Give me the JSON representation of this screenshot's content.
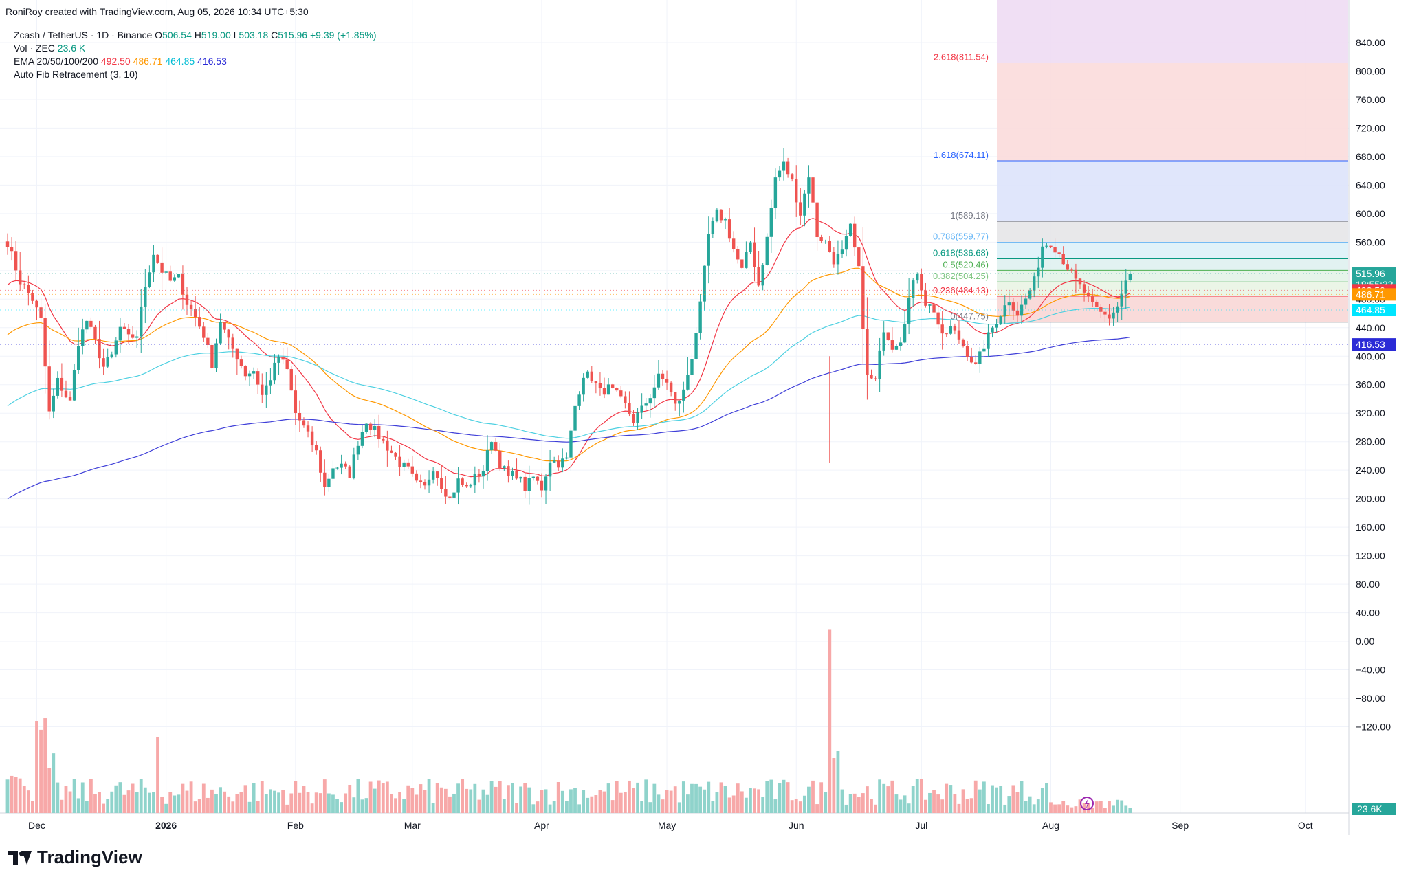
{
  "byline": "RoniRoy created with TradingView.com, Aug 05, 2026 10:34 UTC+5:30",
  "brand": "TradingView",
  "colors": {
    "up": "#26a69a",
    "down": "#ef5350",
    "ema20": "#f23645",
    "ema50": "#ff9800",
    "ema100": "#4dd0e1",
    "ema200": "#3f3fd8",
    "vol_up": "#8fd3cb",
    "vol_down": "#f7a8a8"
  },
  "legend": {
    "symbol": "Zcash / TetherUS · 1D · Binance",
    "o_label": "O",
    "o": "506.54",
    "h_label": "H",
    "h": "519.00",
    "l_label": "L",
    "l": "503.18",
    "c_label": "C",
    "c": "515.96",
    "change": "+9.39 (+1.85%)",
    "vol_label": "Vol · ZEC",
    "vol_value": "23.6 K",
    "ema_label": "EMA 20/50/100/200",
    "ema20": "492.50",
    "ema50": "486.71",
    "ema100": "464.85",
    "ema200": "416.53",
    "fib_label": "Auto Fib Retracement (3, 10)"
  },
  "chart_data": {
    "type": "candlestick",
    "price_axis": {
      "ylim": [
        -150,
        880
      ],
      "ticks": [
        840,
        800,
        760,
        720,
        680,
        640,
        600,
        560,
        520,
        480,
        440,
        400,
        360,
        320,
        280,
        240,
        200,
        160,
        120,
        80,
        40,
        0,
        -40,
        -80,
        -120
      ],
      "tick_labels": [
        "840.00",
        "800.00",
        "760.00",
        "720.00",
        "680.00",
        "640.00",
        "600.00",
        "560.00",
        "520.00",
        "480.00",
        "440.00",
        "400.00",
        "360.00",
        "320.00",
        "280.00",
        "240.00",
        "200.00",
        "160.00",
        "120.00",
        "80.00",
        "40.00",
        "0.00",
        "−40.00",
        "−80.00",
        "−120.00"
      ]
    },
    "time_axis": {
      "labels": [
        "Dec",
        "2026",
        "Feb",
        "Mar",
        "Apr",
        "May",
        "Jun",
        "Jul",
        "Aug",
        "Sep",
        "Oct"
      ],
      "label_day_index": [
        7,
        38,
        69,
        97,
        128,
        158,
        189,
        219,
        250,
        281,
        311
      ]
    },
    "days_total": 326,
    "price_anchors": [
      [
        0,
        560
      ],
      [
        3,
        505
      ],
      [
        6,
        480
      ],
      [
        8,
        450
      ],
      [
        10,
        320
      ],
      [
        12,
        365
      ],
      [
        15,
        335
      ],
      [
        17,
        420
      ],
      [
        19,
        450
      ],
      [
        21,
        420
      ],
      [
        23,
        385
      ],
      [
        25,
        400
      ],
      [
        27,
        440
      ],
      [
        29,
        425
      ],
      [
        31,
        430
      ],
      [
        33,
        500
      ],
      [
        35,
        545
      ],
      [
        37,
        520
      ],
      [
        39,
        505
      ],
      [
        41,
        510
      ],
      [
        43,
        475
      ],
      [
        45,
        455
      ],
      [
        47,
        430
      ],
      [
        49,
        390
      ],
      [
        51,
        450
      ],
      [
        53,
        420
      ],
      [
        55,
        400
      ],
      [
        57,
        375
      ],
      [
        59,
        380
      ],
      [
        61,
        345
      ],
      [
        63,
        370
      ],
      [
        65,
        400
      ],
      [
        67,
        380
      ],
      [
        69,
        320
      ],
      [
        71,
        300
      ],
      [
        74,
        265
      ],
      [
        76,
        215
      ],
      [
        78,
        245
      ],
      [
        80,
        245
      ],
      [
        82,
        235
      ],
      [
        84,
        280
      ],
      [
        86,
        310
      ],
      [
        88,
        295
      ],
      [
        90,
        280
      ],
      [
        92,
        265
      ],
      [
        94,
        250
      ],
      [
        96,
        240
      ],
      [
        98,
        220
      ],
      [
        100,
        215
      ],
      [
        102,
        245
      ],
      [
        104,
        220
      ],
      [
        106,
        200
      ],
      [
        108,
        225
      ],
      [
        110,
        215
      ],
      [
        112,
        230
      ],
      [
        114,
        240
      ],
      [
        116,
        285
      ],
      [
        118,
        250
      ],
      [
        120,
        230
      ],
      [
        122,
        235
      ],
      [
        124,
        215
      ],
      [
        126,
        230
      ],
      [
        128,
        215
      ],
      [
        130,
        255
      ],
      [
        132,
        250
      ],
      [
        134,
        255
      ],
      [
        136,
        330
      ],
      [
        138,
        375
      ],
      [
        140,
        370
      ],
      [
        142,
        350
      ],
      [
        144,
        355
      ],
      [
        146,
        345
      ],
      [
        148,
        330
      ],
      [
        150,
        310
      ],
      [
        152,
        325
      ],
      [
        154,
        345
      ],
      [
        156,
        370
      ],
      [
        158,
        365
      ],
      [
        160,
        330
      ],
      [
        162,
        350
      ],
      [
        164,
        400
      ],
      [
        166,
        470
      ],
      [
        168,
        570
      ],
      [
        170,
        600
      ],
      [
        172,
        590
      ],
      [
        174,
        550
      ],
      [
        176,
        520
      ],
      [
        178,
        560
      ],
      [
        180,
        500
      ],
      [
        182,
        565
      ],
      [
        184,
        650
      ],
      [
        186,
        670
      ],
      [
        188,
        645
      ],
      [
        190,
        600
      ],
      [
        192,
        655
      ],
      [
        194,
        570
      ],
      [
        196,
        560
      ],
      [
        198,
        535
      ],
      [
        200,
        545
      ],
      [
        202,
        580
      ],
      [
        204,
        520
      ],
      [
        206,
        370
      ],
      [
        208,
        365
      ],
      [
        210,
        440
      ],
      [
        212,
        415
      ],
      [
        214,
        425
      ],
      [
        216,
        480
      ],
      [
        218,
        520
      ],
      [
        220,
        475
      ],
      [
        222,
        465
      ],
      [
        224,
        425
      ],
      [
        226,
        440
      ],
      [
        228,
        425
      ],
      [
        230,
        405
      ],
      [
        232,
        385
      ],
      [
        234,
        415
      ],
      [
        236,
        440
      ],
      [
        238,
        460
      ],
      [
        240,
        480
      ],
      [
        242,
        460
      ],
      [
        244,
        480
      ],
      [
        246,
        505
      ],
      [
        248,
        555
      ],
      [
        250,
        560
      ],
      [
        252,
        545
      ],
      [
        254,
        525
      ],
      [
        256,
        505
      ],
      [
        258,
        490
      ],
      [
        260,
        470
      ],
      [
        262,
        460
      ],
      [
        264,
        455
      ],
      [
        266,
        470
      ],
      [
        268,
        505
      ],
      [
        269,
        516
      ]
    ],
    "fib_levels": [
      {
        "label": "0(447.75)",
        "value": 447.75,
        "color": "#787b86",
        "fill": "#f8d7d6"
      },
      {
        "label": "0.236(484.13)",
        "value": 484.13,
        "color": "#f23645",
        "fill": "#e9f4e4"
      },
      {
        "label": "0.382(504.25)",
        "value": 504.25,
        "color": "#81c784",
        "fill": "#e3f3e8"
      },
      {
        "label": "0.5(520.46)",
        "value": 520.46,
        "color": "#4caf50",
        "fill": "#dff1ef"
      },
      {
        "label": "0.618(536.68)",
        "value": 536.68,
        "color": "#089981",
        "fill": "#ddf1f8"
      },
      {
        "label": "0.786(559.77)",
        "value": 559.77,
        "color": "#64b5f6",
        "fill": "#e6e6e8"
      },
      {
        "label": "1(589.18)",
        "value": 589.18,
        "color": "#787b86",
        "fill": "#dde3fb"
      },
      {
        "label": "1.618(674.11)",
        "value": 674.11,
        "color": "#2962ff",
        "fill": "#fbdcdc"
      },
      {
        "label": "2.618(811.54)",
        "value": 811.54,
        "color": "#f23645",
        "fill": "#eedcf3"
      }
    ],
    "volume_spike": {
      "day": 197,
      "value": 108
    },
    "last_price": {
      "value": 515.96,
      "label": "515.96",
      "countdown": "18:55:33"
    },
    "ema_tags": [
      {
        "value": 492.5,
        "label": "492.50",
        "color": "#f23645"
      },
      {
        "value": 486.71,
        "label": "486.71",
        "color": "#ff9800"
      },
      {
        "value": 464.85,
        "label": "464.85",
        "color": "#00e5ff"
      },
      {
        "value": 416.53,
        "label": "416.53",
        "color": "#2a2ad6"
      }
    ],
    "volume_tag": "23.6K"
  }
}
